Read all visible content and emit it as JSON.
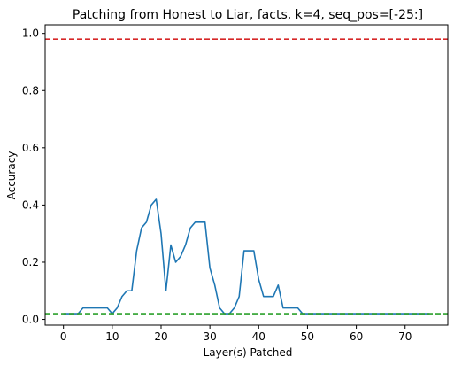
{
  "chart_data": {
    "type": "line",
    "title": "Patching from Honest to Liar, facts, k=4, seq_pos=[-25:]",
    "xlabel": "Layer(s) Patched",
    "ylabel": "Accuracy",
    "xlim": [
      -3.75,
      78.75
    ],
    "ylim": [
      -0.02,
      1.03
    ],
    "xticks": [
      0,
      10,
      20,
      30,
      40,
      50,
      60,
      70
    ],
    "yticks": [
      0.0,
      0.2,
      0.4,
      0.6,
      0.8,
      1.0
    ],
    "ytick_labels": [
      "0.0",
      "0.2",
      "0.4",
      "0.6",
      "0.8",
      "1.0"
    ],
    "grid": false,
    "series": [
      {
        "color": "#1f77b4",
        "style": "solid",
        "x": [
          0,
          1,
          2,
          3,
          4,
          5,
          6,
          7,
          8,
          9,
          10,
          11,
          12,
          13,
          14,
          15,
          16,
          17,
          18,
          19,
          20,
          21,
          22,
          23,
          24,
          25,
          26,
          27,
          28,
          29,
          30,
          31,
          32,
          33,
          34,
          35,
          36,
          37,
          38,
          39,
          40,
          41,
          42,
          43,
          44,
          45,
          46,
          47,
          48,
          49,
          50,
          51,
          52,
          53,
          54,
          55,
          56,
          57,
          58,
          59,
          60,
          61,
          62,
          63,
          64,
          65,
          66,
          67,
          68,
          69,
          70,
          71,
          72,
          73,
          74,
          75
        ],
        "y": [
          0.02,
          0.02,
          0.02,
          0.02,
          0.04,
          0.04,
          0.04,
          0.04,
          0.04,
          0.04,
          0.02,
          0.04,
          0.08,
          0.1,
          0.1,
          0.24,
          0.32,
          0.34,
          0.4,
          0.42,
          0.3,
          0.1,
          0.26,
          0.2,
          0.22,
          0.26,
          0.32,
          0.34,
          0.34,
          0.34,
          0.18,
          0.12,
          0.04,
          0.02,
          0.02,
          0.04,
          0.08,
          0.24,
          0.24,
          0.24,
          0.14,
          0.08,
          0.08,
          0.08,
          0.12,
          0.04,
          0.04,
          0.04,
          0.04,
          0.02,
          0.02,
          0.02,
          0.02,
          0.02,
          0.02,
          0.02,
          0.02,
          0.02,
          0.02,
          0.02,
          0.02,
          0.02,
          0.02,
          0.02,
          0.02,
          0.02,
          0.02,
          0.02,
          0.02,
          0.02,
          0.02,
          0.02,
          0.02,
          0.02,
          0.02,
          0.02
        ]
      },
      {
        "color": "#d62728",
        "style": "dashed",
        "x": [
          -3.75,
          78.75
        ],
        "y": [
          0.98,
          0.98
        ]
      },
      {
        "color": "#2ca02c",
        "style": "dashed",
        "x": [
          -3.75,
          78.75
        ],
        "y": [
          0.02,
          0.02
        ]
      }
    ]
  }
}
